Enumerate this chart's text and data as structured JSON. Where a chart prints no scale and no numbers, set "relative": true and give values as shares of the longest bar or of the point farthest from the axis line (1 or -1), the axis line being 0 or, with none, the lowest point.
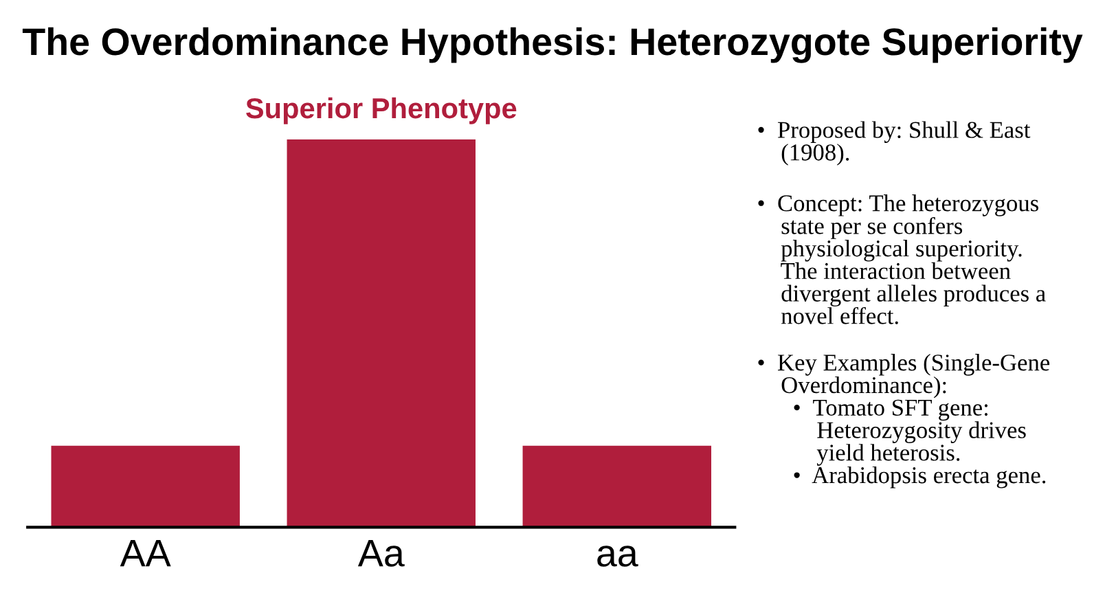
{
  "chart_data": {
    "type": "bar",
    "title": "The Overdominance Hypothesis: Heterozygote Superiority",
    "categories": [
      "AA",
      "Aa",
      "aa"
    ],
    "values": [
      0.21,
      1,
      0.21
    ],
    "color": "#b01e3c",
    "relative": true,
    "grid": false,
    "annotations": [
      {
        "text": "Superior Phenotype",
        "x": "Aa",
        "y": 1
      },
      "•  Proposed by: Shull & East\n    (1908).",
      "•  Concept: The heterozygous\n    state per se confers\n    physiological superiority.\n    The interaction between\n    divergent alleles produces a\n    novel effect.",
      "•  Key Examples (Single-Gene\n    Overdominance):\n      •  Tomato SFT gene:\n          Heterozygosity drives\n          yield heterosis.\n      •  Arabidopsis erecta gene."
    ]
  }
}
